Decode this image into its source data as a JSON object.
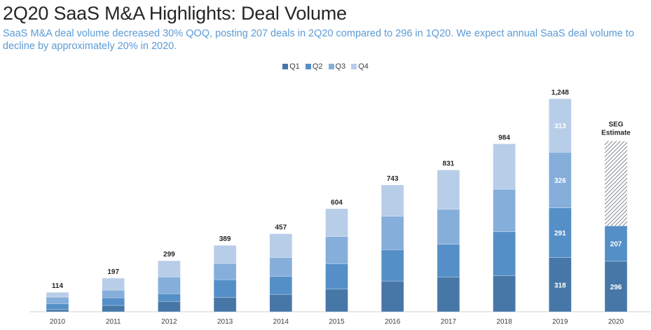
{
  "header": {
    "title": "2Q20 SaaS M&A Highlights: Deal Volume",
    "subtitle": "SaaS M&A deal volume decreased 30% QOQ, posting 207 deals in 2Q20 compared to 296 in 1Q20. We expect annual SaaS deal volume to decline by approximately 20% in 2020."
  },
  "colors": {
    "Q1": "#4677a7",
    "Q2": "#558fc7",
    "Q3": "#86aedb",
    "Q4": "#b8cde8",
    "estimate": "#9aa3ad",
    "title": "#262626",
    "subtitle": "#5b9bd5"
  },
  "chart_data": {
    "type": "bar",
    "stacked": true,
    "title": "",
    "xlabel": "",
    "ylabel": "",
    "ylim": [
      0,
      1300
    ],
    "grid": false,
    "legend_position": "top-center",
    "legend": [
      "Q1",
      "Q2",
      "Q3",
      "Q4"
    ],
    "categories": [
      "2010",
      "2011",
      "2012",
      "2013",
      "2014",
      "2015",
      "2016",
      "2017",
      "2018",
      "2019",
      "2020"
    ],
    "series": [
      {
        "name": "Q1",
        "values": [
          13,
          37,
          61,
          85,
          102,
          134,
          180,
          204,
          212,
          318,
          296
        ]
      },
      {
        "name": "Q2",
        "values": [
          35,
          45,
          45,
          103,
          106,
          148,
          184,
          192,
          257,
          291,
          207
        ]
      },
      {
        "name": "Q3",
        "values": [
          38,
          45,
          98,
          95,
          110,
          159,
          196,
          205,
          249,
          326,
          null
        ]
      },
      {
        "name": "Q4",
        "values": [
          28,
          70,
          95,
          106,
          139,
          163,
          183,
          230,
          266,
          313,
          null
        ]
      }
    ],
    "totals": [
      "114",
      "197",
      "299",
      "389",
      "457",
      "604",
      "743",
      "831",
      "984",
      "1,248",
      null
    ],
    "segment_labels_shown": {
      "2019": [
        "318",
        "291",
        "326",
        "313"
      ],
      "2020": [
        "296",
        "207"
      ]
    },
    "estimate": {
      "category": "2020",
      "label_line1": "SEG",
      "label_line2": "Estimate",
      "approx_total": 1000
    }
  }
}
